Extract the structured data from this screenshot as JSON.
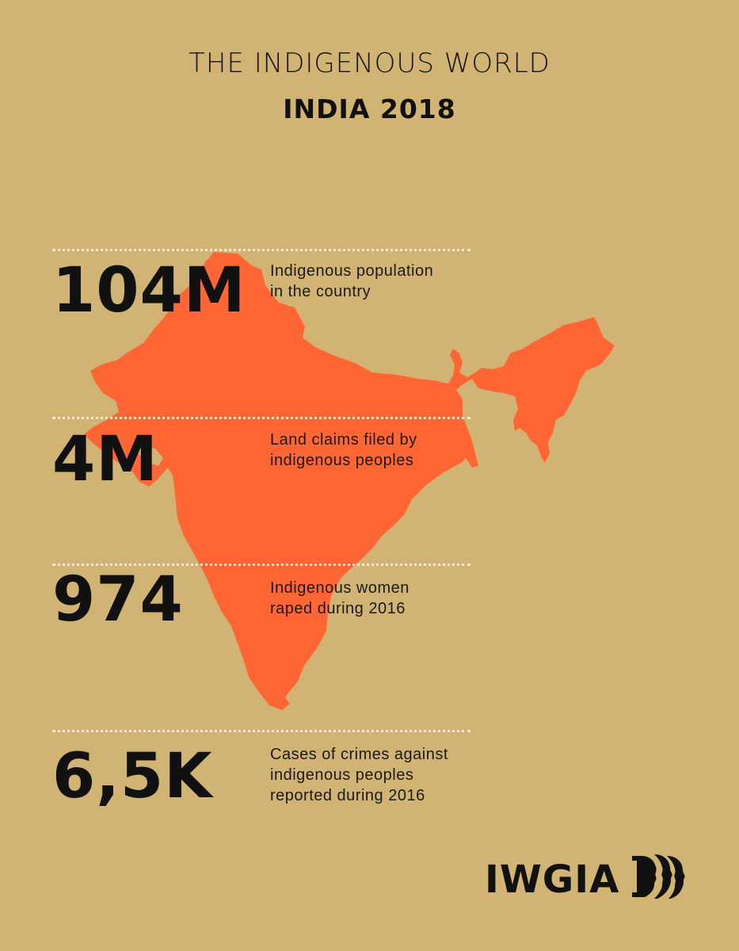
{
  "header": {
    "title": "THE INDIGENOUS WORLD",
    "subtitle": "INDIA 2018"
  },
  "map": {
    "country": "India",
    "fill_color": "#ff6633"
  },
  "stats": [
    {
      "value": "104M",
      "label_lines": [
        "Indigenous population",
        "in the country"
      ]
    },
    {
      "value": "4M",
      "label_lines": [
        "Land claims filed by",
        "indigenous peoples"
      ]
    },
    {
      "value": "974",
      "label_lines": [
        "Indigenous women",
        "raped during 2016"
      ]
    },
    {
      "value": "6,5K",
      "label_lines": [
        "Cases of crimes against",
        "indigenous peoples",
        "reported during 2016"
      ]
    }
  ],
  "logo": {
    "text": "IWGIA",
    "icon": "profiles-logo-icon"
  },
  "colors": {
    "background": "#d1b374",
    "accent": "#ff6633",
    "text": "#111111",
    "divider": "#f4ead5"
  }
}
